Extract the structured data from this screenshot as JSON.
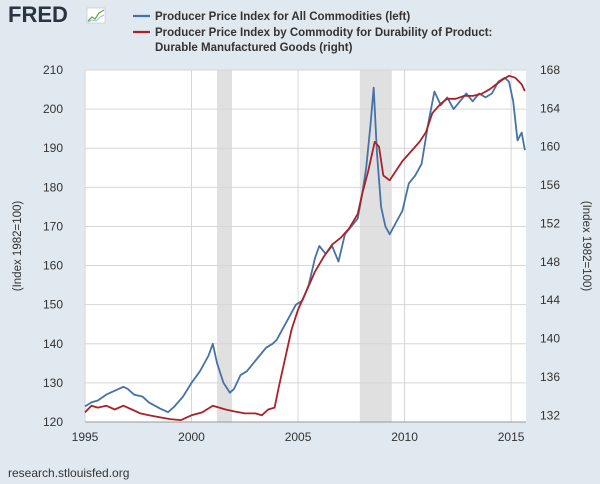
{
  "logo": {
    "text": "FRED"
  },
  "footer": {
    "source": "research.stlouisfed.org"
  },
  "chart_data": {
    "type": "line",
    "title": "",
    "legend_position": "top",
    "x_ticks": [
      1995,
      2000,
      2005,
      2010,
      2015
    ],
    "x_range": [
      1995.0,
      2015.7
    ],
    "recessions": [
      [
        2001.2,
        2001.9
      ],
      [
        2007.9,
        2009.4
      ]
    ],
    "left_axis": {
      "label": "(Index 1982=100)",
      "range": [
        120,
        210
      ],
      "ticks": [
        120,
        130,
        140,
        150,
        160,
        170,
        180,
        190,
        200,
        210
      ]
    },
    "right_axis": {
      "label": "(Index 1982=100)",
      "range": [
        131.3,
        168
      ],
      "ticks": [
        132,
        136,
        140,
        144,
        148,
        152,
        156,
        160,
        164,
        168
      ]
    },
    "series": [
      {
        "name": "Producer Price Index for All Commodities (left)",
        "color": "#4572a7",
        "axis": "left",
        "x": [
          1995.0,
          1995.3,
          1995.6,
          1996.0,
          1996.4,
          1996.8,
          1997.0,
          1997.3,
          1997.7,
          1998.0,
          1998.5,
          1998.9,
          1999.2,
          1999.6,
          2000.0,
          2000.4,
          2000.8,
          2001.0,
          2001.2,
          2001.5,
          2001.8,
          2002.0,
          2002.3,
          2002.6,
          2002.9,
          2003.2,
          2003.5,
          2003.8,
          2004.0,
          2004.3,
          2004.6,
          2004.9,
          2005.2,
          2005.5,
          2005.8,
          2006.0,
          2006.3,
          2006.6,
          2006.9,
          2007.2,
          2007.5,
          2007.8,
          2008.0,
          2008.2,
          2008.4,
          2008.55,
          2008.7,
          2008.9,
          2009.1,
          2009.3,
          2009.6,
          2009.9,
          2010.2,
          2010.5,
          2010.8,
          2011.1,
          2011.4,
          2011.7,
          2012.0,
          2012.3,
          2012.6,
          2012.9,
          2013.2,
          2013.5,
          2013.8,
          2014.1,
          2014.4,
          2014.7,
          2014.9,
          2015.1,
          2015.3,
          2015.5,
          2015.65
        ],
        "values": [
          124,
          125,
          125.5,
          127,
          128,
          129,
          128.5,
          127,
          126.5,
          125,
          123.5,
          122.5,
          124,
          126.5,
          130,
          133,
          137,
          140,
          135,
          130,
          127.5,
          128.5,
          132,
          133,
          135,
          137,
          139,
          140,
          141,
          144,
          147,
          150,
          151,
          155,
          162,
          165,
          163,
          165,
          161,
          168,
          170,
          172,
          178,
          185,
          196,
          205.5,
          189,
          175,
          170,
          168,
          171,
          174,
          181,
          183,
          186,
          196,
          204.5,
          201,
          203,
          200,
          202,
          204,
          202,
          204,
          203,
          204,
          207,
          208,
          207,
          202,
          192,
          194,
          189.5
        ]
      },
      {
        "name": "Producer Price Index by Commodity for Durability of Product: Durable Manufactured Goods (right)",
        "color": "#aa2128",
        "axis": "right",
        "x": [
          1995.0,
          1995.3,
          1995.6,
          1996.0,
          1996.4,
          1996.8,
          1997.2,
          1997.6,
          1998.0,
          1998.5,
          1999.0,
          1999.5,
          2000.0,
          2000.5,
          2001.0,
          2001.3,
          2001.6,
          2002.0,
          2002.5,
          2003.0,
          2003.3,
          2003.6,
          2003.9,
          2004.1,
          2004.4,
          2004.7,
          2005.0,
          2005.4,
          2005.8,
          2006.2,
          2006.6,
          2007.0,
          2007.4,
          2007.8,
          2008.0,
          2008.3,
          2008.6,
          2008.8,
          2009.0,
          2009.3,
          2009.6,
          2009.9,
          2010.3,
          2010.7,
          2011.0,
          2011.3,
          2011.7,
          2012.0,
          2012.4,
          2012.8,
          2013.2,
          2013.6,
          2014.0,
          2014.3,
          2014.6,
          2014.9,
          2015.2,
          2015.5,
          2015.65
        ],
        "values": [
          132.3,
          133.0,
          132.8,
          133.0,
          132.6,
          133.0,
          132.6,
          132.2,
          132.0,
          131.8,
          131.6,
          131.5,
          132.0,
          132.3,
          133.0,
          132.8,
          132.6,
          132.4,
          132.2,
          132.2,
          132.0,
          132.6,
          132.8,
          135.0,
          138.0,
          141.0,
          143.0,
          145.0,
          147.0,
          148.5,
          149.8,
          150.5,
          151.5,
          153.0,
          155.0,
          157.5,
          160.5,
          160.0,
          157.0,
          156.5,
          157.5,
          158.5,
          159.5,
          160.5,
          161.5,
          163.5,
          164.5,
          165.0,
          165.0,
          165.3,
          165.3,
          165.5,
          166.0,
          166.5,
          167.0,
          167.4,
          167.2,
          166.5,
          165.8
        ]
      }
    ]
  }
}
